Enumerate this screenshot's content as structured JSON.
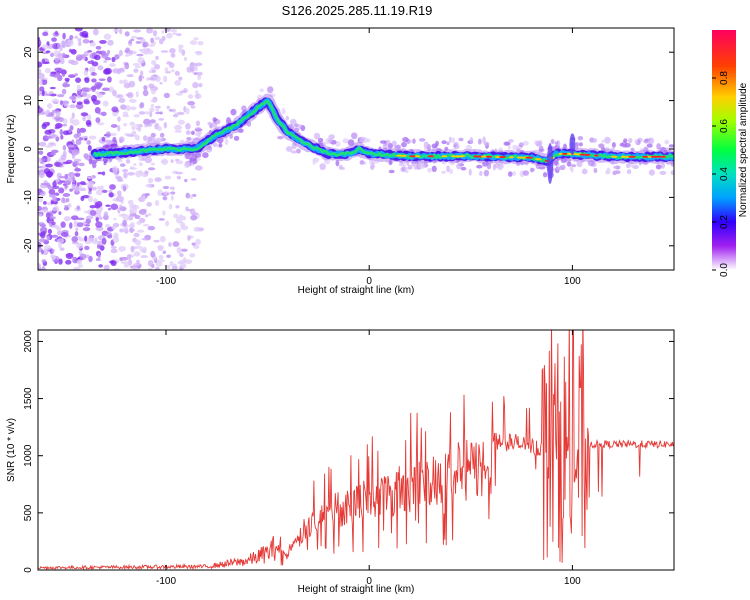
{
  "title": "S126.2025.285.11.19.R19",
  "spectrogram": {
    "xlabel": "Height of straight line (km)",
    "ylabel": "Frequency (Hz)",
    "xlim": [
      -163,
      150
    ],
    "ylim": [
      -25,
      25
    ],
    "xticks": [
      -100,
      0,
      100
    ],
    "yticks": [
      -20,
      -10,
      0,
      10,
      20
    ],
    "colorbar": {
      "label": "Normalized spectral amplitude",
      "ticks": [
        "0.0",
        "0.2",
        "0.4",
        "0.6",
        "0.8"
      ],
      "range": [
        0,
        1
      ]
    },
    "trace_nodes": [
      [
        -130,
        -1
      ],
      [
        -100,
        0
      ],
      [
        -85,
        0
      ],
      [
        -75,
        3
      ],
      [
        -65,
        5
      ],
      [
        -55,
        8.5
      ],
      [
        -50,
        10
      ],
      [
        -45,
        6
      ],
      [
        -40,
        3.5
      ],
      [
        -35,
        2
      ],
      [
        -30,
        0.8
      ],
      [
        -20,
        -1
      ],
      [
        -10,
        -1
      ],
      [
        -5,
        0
      ],
      [
        0,
        -1
      ],
      [
        20,
        -1.5
      ],
      [
        50,
        -1.5
      ],
      [
        80,
        -1.8
      ],
      [
        88,
        -2.5
      ],
      [
        92,
        -1
      ],
      [
        100,
        -1
      ],
      [
        120,
        -1.6
      ],
      [
        150,
        -1.6
      ]
    ]
  },
  "snr": {
    "xlabel": "Height of straight line (km)",
    "ylabel": "SNR (10 * v/v)",
    "xlim": [
      -163,
      150
    ],
    "ylim": [
      0,
      2100
    ],
    "xticks": [
      -100,
      0,
      100
    ],
    "yticks": [
      0,
      500,
      1000,
      1500,
      2000
    ],
    "color": "#e53935",
    "envelope_nodes": [
      [
        -163,
        20
      ],
      [
        -80,
        30
      ],
      [
        -60,
        80
      ],
      [
        -50,
        150
      ],
      [
        -45,
        220
      ],
      [
        -40,
        150
      ],
      [
        -30,
        500
      ],
      [
        -20,
        620
      ],
      [
        -10,
        720
      ],
      [
        0,
        780
      ],
      [
        10,
        850
      ],
      [
        20,
        920
      ],
      [
        30,
        980
      ],
      [
        40,
        1050
      ],
      [
        50,
        1100
      ],
      [
        60,
        1150
      ],
      [
        70,
        1150
      ],
      [
        80,
        1100
      ],
      [
        90,
        1120
      ],
      [
        100,
        1120
      ],
      [
        110,
        1100
      ],
      [
        130,
        1100
      ],
      [
        150,
        1100
      ]
    ]
  },
  "colors": {
    "axis": "#000000",
    "snr_line": "#e53935",
    "background": "#ffffff"
  }
}
